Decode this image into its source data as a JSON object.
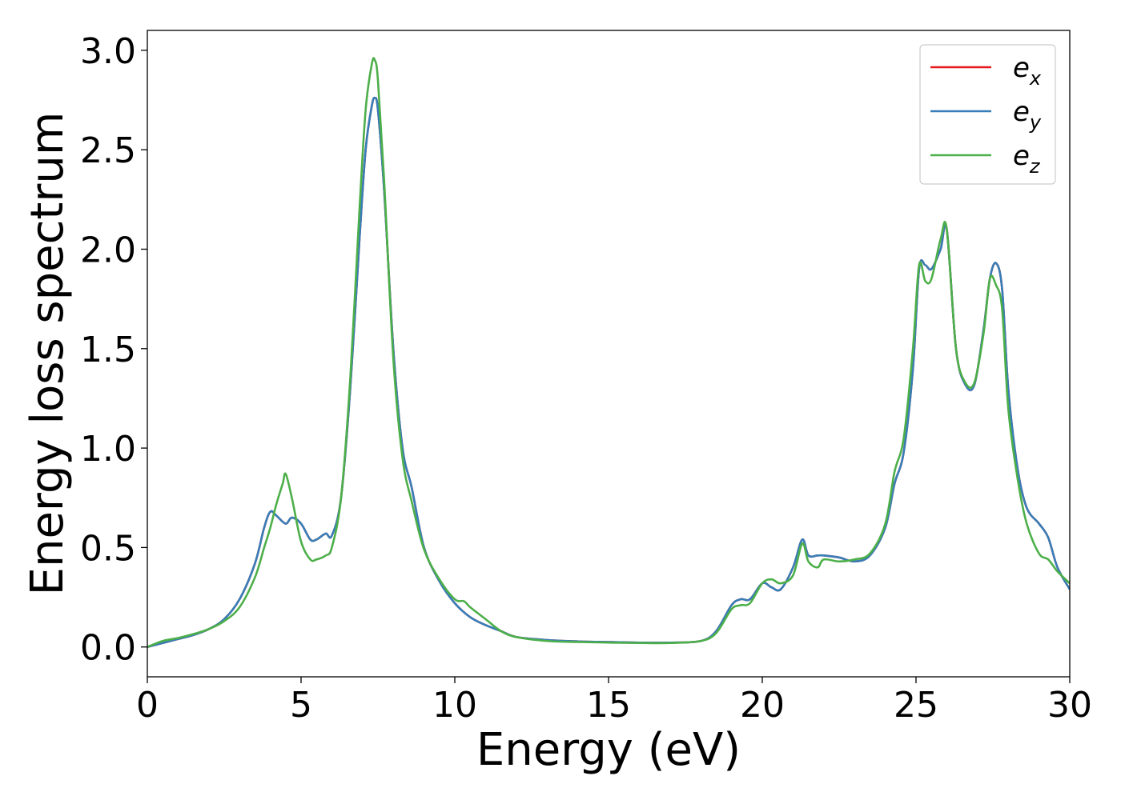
{
  "chart_data": {
    "type": "line",
    "title": "",
    "xlabel": "Energy (eV)",
    "ylabel": "Energy loss spectrum",
    "xlim": [
      0,
      30
    ],
    "ylim": [
      -0.15,
      3.1
    ],
    "xticks": [
      0,
      5,
      10,
      15,
      20,
      25,
      30
    ],
    "xtick_labels": [
      "0",
      "5",
      "10",
      "15",
      "20",
      "25",
      "30"
    ],
    "yticks": [
      0.0,
      0.5,
      1.0,
      1.5,
      2.0,
      2.5,
      3.0
    ],
    "ytick_labels": [
      "0.0",
      "0.5",
      "1.0",
      "1.5",
      "2.0",
      "2.5",
      "3.0"
    ],
    "grid": false,
    "legend_position": "top-right",
    "series": [
      {
        "name": "e",
        "subscript": "x",
        "color": "#e41a1c",
        "x": [
          0,
          0.5,
          1,
          1.5,
          2,
          2.5,
          3,
          3.5,
          3.8,
          4,
          4.2,
          4.5,
          4.7,
          5,
          5.3,
          5.5,
          5.8,
          6,
          6.3,
          6.6,
          6.9,
          7.1,
          7.3,
          7.4,
          7.5,
          7.7,
          8,
          8.3,
          8.6,
          9,
          9.5,
          10,
          10.5,
          11,
          11.5,
          12,
          13,
          14,
          15,
          16,
          17,
          18,
          18.5,
          19,
          19.3,
          19.6,
          20,
          20.3,
          20.6,
          21,
          21.3,
          21.5,
          21.8,
          22,
          22.5,
          23,
          23.5,
          24,
          24.3,
          24.6,
          24.9,
          25.1,
          25.3,
          25.5,
          25.8,
          26,
          26.3,
          26.6,
          26.9,
          27.2,
          27.4,
          27.6,
          27.8,
          28,
          28.3,
          28.6,
          29,
          29.3,
          29.6,
          30
        ],
        "y": [
          0,
          0.02,
          0.04,
          0.06,
          0.09,
          0.14,
          0.24,
          0.42,
          0.6,
          0.68,
          0.66,
          0.62,
          0.65,
          0.62,
          0.54,
          0.54,
          0.57,
          0.56,
          0.75,
          1.3,
          2.05,
          2.5,
          2.72,
          2.76,
          2.7,
          2.3,
          1.5,
          1.0,
          0.8,
          0.5,
          0.33,
          0.22,
          0.15,
          0.11,
          0.08,
          0.05,
          0.035,
          0.028,
          0.025,
          0.022,
          0.022,
          0.03,
          0.08,
          0.21,
          0.24,
          0.24,
          0.32,
          0.3,
          0.29,
          0.4,
          0.54,
          0.46,
          0.46,
          0.46,
          0.45,
          0.43,
          0.46,
          0.6,
          0.82,
          0.98,
          1.4,
          1.9,
          1.92,
          1.9,
          2.0,
          2.1,
          1.5,
          1.32,
          1.32,
          1.6,
          1.85,
          1.93,
          1.8,
          1.3,
          0.9,
          0.7,
          0.62,
          0.55,
          0.4,
          0.29
        ]
      },
      {
        "name": "e",
        "subscript": "y",
        "color": "#377eb8",
        "x": [
          0,
          0.5,
          1,
          1.5,
          2,
          2.5,
          3,
          3.5,
          3.8,
          4,
          4.2,
          4.5,
          4.7,
          5,
          5.3,
          5.5,
          5.8,
          6,
          6.3,
          6.6,
          6.9,
          7.1,
          7.3,
          7.4,
          7.5,
          7.7,
          8,
          8.3,
          8.6,
          9,
          9.5,
          10,
          10.5,
          11,
          11.5,
          12,
          13,
          14,
          15,
          16,
          17,
          18,
          18.5,
          19,
          19.3,
          19.6,
          20,
          20.3,
          20.6,
          21,
          21.3,
          21.5,
          21.8,
          22,
          22.5,
          23,
          23.5,
          24,
          24.3,
          24.6,
          24.9,
          25.1,
          25.3,
          25.5,
          25.8,
          26,
          26.3,
          26.6,
          26.9,
          27.2,
          27.4,
          27.6,
          27.8,
          28,
          28.3,
          28.6,
          29,
          29.3,
          29.6,
          30
        ],
        "y": [
          0,
          0.02,
          0.04,
          0.06,
          0.09,
          0.14,
          0.24,
          0.42,
          0.6,
          0.68,
          0.66,
          0.62,
          0.65,
          0.62,
          0.54,
          0.54,
          0.57,
          0.56,
          0.75,
          1.3,
          2.05,
          2.5,
          2.72,
          2.76,
          2.7,
          2.3,
          1.5,
          1.0,
          0.8,
          0.5,
          0.33,
          0.22,
          0.15,
          0.11,
          0.08,
          0.05,
          0.035,
          0.028,
          0.025,
          0.022,
          0.022,
          0.03,
          0.08,
          0.21,
          0.24,
          0.24,
          0.32,
          0.3,
          0.29,
          0.4,
          0.54,
          0.46,
          0.46,
          0.46,
          0.45,
          0.43,
          0.46,
          0.6,
          0.82,
          0.98,
          1.4,
          1.9,
          1.92,
          1.9,
          2.0,
          2.1,
          1.5,
          1.32,
          1.32,
          1.6,
          1.85,
          1.93,
          1.8,
          1.3,
          0.9,
          0.7,
          0.62,
          0.55,
          0.4,
          0.29
        ]
      },
      {
        "name": "e",
        "subscript": "z",
        "color": "#4daf4a",
        "x": [
          0,
          0.5,
          1,
          1.5,
          2,
          2.5,
          3,
          3.5,
          3.8,
          4,
          4.2,
          4.4,
          4.5,
          4.7,
          5,
          5.3,
          5.5,
          5.8,
          6,
          6.3,
          6.6,
          6.9,
          7.1,
          7.3,
          7.4,
          7.5,
          7.7,
          8,
          8.3,
          8.6,
          9,
          9.5,
          10,
          10.3,
          10.5,
          11,
          11.5,
          12,
          13,
          14,
          15,
          16,
          17,
          18,
          18.5,
          19,
          19.3,
          19.6,
          20,
          20.3,
          20.6,
          21,
          21.3,
          21.5,
          21.8,
          22,
          22.5,
          23,
          23.5,
          24,
          24.3,
          24.6,
          24.9,
          25.1,
          25.3,
          25.5,
          25.8,
          26,
          26.3,
          26.6,
          26.9,
          27.2,
          27.4,
          27.6,
          27.8,
          28,
          28.3,
          28.6,
          29,
          29.3,
          29.6,
          30
        ],
        "y": [
          0,
          0.03,
          0.045,
          0.065,
          0.09,
          0.13,
          0.2,
          0.35,
          0.5,
          0.6,
          0.72,
          0.82,
          0.87,
          0.75,
          0.53,
          0.44,
          0.44,
          0.46,
          0.5,
          0.75,
          1.35,
          2.2,
          2.7,
          2.93,
          2.95,
          2.85,
          2.35,
          1.45,
          0.95,
          0.73,
          0.49,
          0.34,
          0.24,
          0.23,
          0.2,
          0.14,
          0.08,
          0.05,
          0.03,
          0.025,
          0.022,
          0.02,
          0.02,
          0.03,
          0.07,
          0.19,
          0.21,
          0.22,
          0.32,
          0.34,
          0.32,
          0.36,
          0.52,
          0.43,
          0.4,
          0.44,
          0.43,
          0.44,
          0.47,
          0.62,
          0.88,
          1.05,
          1.5,
          1.92,
          1.84,
          1.85,
          2.05,
          2.1,
          1.5,
          1.33,
          1.33,
          1.58,
          1.85,
          1.82,
          1.7,
          1.2,
          0.85,
          0.62,
          0.47,
          0.44,
          0.38,
          0.32
        ]
      }
    ]
  }
}
